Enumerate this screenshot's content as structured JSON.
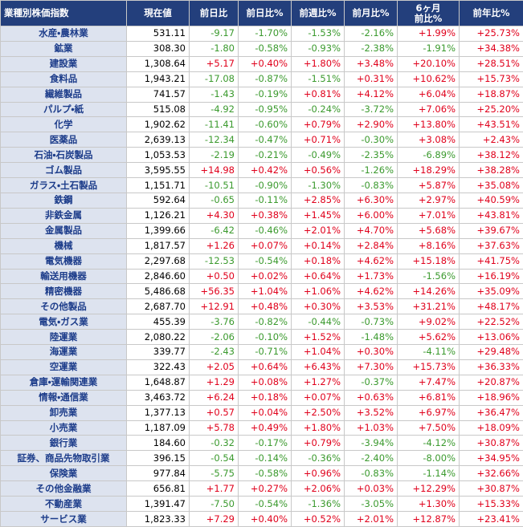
{
  "table": {
    "header": [
      "業種別株価指数",
      "現在値",
      "前日比",
      "前日比%",
      "前週比%",
      "前月比%",
      "6ヶ月\n前比%",
      "前年比%"
    ],
    "rows": [
      [
        "水産・農林業",
        "531.11",
        "-9.17",
        "-1.70%",
        "-1.53%",
        "-2.16%",
        "+1.99%",
        "+25.73%"
      ],
      [
        "鉱業",
        "308.30",
        "-1.80",
        "-0.58%",
        "-0.93%",
        "-2.38%",
        "-1.91%",
        "+34.38%"
      ],
      [
        "建設業",
        "1,308.64",
        "+5.17",
        "+0.40%",
        "+1.80%",
        "+3.48%",
        "+20.10%",
        "+28.51%"
      ],
      [
        "食料品",
        "1,943.21",
        "-17.08",
        "-0.87%",
        "-1.51%",
        "+0.31%",
        "+10.62%",
        "+15.73%"
      ],
      [
        "繊維製品",
        "741.57",
        "-1.43",
        "-0.19%",
        "+0.81%",
        "+4.12%",
        "+6.04%",
        "+18.87%"
      ],
      [
        "パルプ・紙",
        "515.08",
        "-4.92",
        "-0.95%",
        "-0.24%",
        "-3.72%",
        "+7.06%",
        "+25.20%"
      ],
      [
        "化学",
        "1,902.62",
        "-11.41",
        "-0.60%",
        "+0.79%",
        "+2.90%",
        "+13.80%",
        "+43.51%"
      ],
      [
        "医薬品",
        "2,639.13",
        "-12.34",
        "-0.47%",
        "+0.71%",
        "-0.30%",
        "+3.08%",
        "+2.43%"
      ],
      [
        "石油・石炭製品",
        "1,053.53",
        "-2.19",
        "-0.21%",
        "-0.49%",
        "-2.35%",
        "-6.89%",
        "+38.12%"
      ],
      [
        "ゴム製品",
        "3,595.55",
        "+14.98",
        "+0.42%",
        "+0.56%",
        "-1.26%",
        "+18.29%",
        "+38.28%"
      ],
      [
        "ガラス・土石製品",
        "1,151.71",
        "-10.51",
        "-0.90%",
        "-1.30%",
        "-0.83%",
        "+5.87%",
        "+35.08%"
      ],
      [
        "鉄鋼",
        "592.64",
        "-0.65",
        "-0.11%",
        "+2.85%",
        "+6.30%",
        "+2.97%",
        "+40.59%"
      ],
      [
        "非鉄金属",
        "1,126.21",
        "+4.30",
        "+0.38%",
        "+1.45%",
        "+6.00%",
        "+7.01%",
        "+43.81%"
      ],
      [
        "金属製品",
        "1,399.66",
        "-6.42",
        "-0.46%",
        "+2.01%",
        "+4.70%",
        "+5.68%",
        "+39.67%"
      ],
      [
        "機械",
        "1,817.57",
        "+1.26",
        "+0.07%",
        "+0.14%",
        "+2.84%",
        "+8.16%",
        "+37.63%"
      ],
      [
        "電気機器",
        "2,297.68",
        "-12.53",
        "-0.54%",
        "+0.18%",
        "+4.62%",
        "+15.18%",
        "+41.75%"
      ],
      [
        "輸送用機器",
        "2,846.60",
        "+0.50",
        "+0.02%",
        "+0.64%",
        "+1.73%",
        "-1.56%",
        "+16.19%"
      ],
      [
        "精密機器",
        "5,486.68",
        "+56.35",
        "+1.04%",
        "+1.06%",
        "+4.62%",
        "+14.26%",
        "+35.09%"
      ],
      [
        "その他製品",
        "2,687.70",
        "+12.91",
        "+0.48%",
        "+0.30%",
        "+3.53%",
        "+31.21%",
        "+48.17%"
      ],
      [
        "電気・ガス業",
        "455.39",
        "-3.76",
        "-0.82%",
        "-0.44%",
        "-0.73%",
        "+9.02%",
        "+22.52%"
      ],
      [
        "陸運業",
        "2,080.22",
        "-2.06",
        "-0.10%",
        "+1.52%",
        "-1.48%",
        "+5.62%",
        "+13.06%"
      ],
      [
        "海運業",
        "339.77",
        "-2.43",
        "-0.71%",
        "+1.04%",
        "+0.30%",
        "-4.11%",
        "+29.48%"
      ],
      [
        "空運業",
        "322.43",
        "+2.05",
        "+0.64%",
        "+6.43%",
        "+7.30%",
        "+15.73%",
        "+36.33%"
      ],
      [
        "倉庫・運輸関連業",
        "1,648.87",
        "+1.29",
        "+0.08%",
        "+1.27%",
        "-0.37%",
        "+7.47%",
        "+20.87%"
      ],
      [
        "情報・通信業",
        "3,463.72",
        "+6.24",
        "+0.18%",
        "+0.07%",
        "+0.63%",
        "+6.81%",
        "+18.96%"
      ],
      [
        "卸売業",
        "1,377.13",
        "+0.57",
        "+0.04%",
        "+2.50%",
        "+3.52%",
        "+6.97%",
        "+36.47%"
      ],
      [
        "小売業",
        "1,187.09",
        "+5.78",
        "+0.49%",
        "+1.80%",
        "+1.03%",
        "+7.50%",
        "+18.09%"
      ],
      [
        "銀行業",
        "184.60",
        "-0.32",
        "-0.17%",
        "+0.79%",
        "-3.94%",
        "-4.12%",
        "+30.87%"
      ],
      [
        "証券、商品先物取引業",
        "396.15",
        "-0.54",
        "-0.14%",
        "-0.36%",
        "-2.40%",
        "-8.00%",
        "+34.95%"
      ],
      [
        "保険業",
        "977.84",
        "-5.75",
        "-0.58%",
        "+0.96%",
        "-0.83%",
        "-1.14%",
        "+32.66%"
      ],
      [
        "その他金融業",
        "656.81",
        "+1.77",
        "+0.27%",
        "+2.06%",
        "+0.03%",
        "+12.29%",
        "+30.87%"
      ],
      [
        "不動産業",
        "1,391.47",
        "-7.50",
        "-0.54%",
        "-1.36%",
        "-3.05%",
        "+1.30%",
        "+15.33%"
      ],
      [
        "サービス業",
        "1,823.33",
        "+7.29",
        "+0.40%",
        "+0.52%",
        "+2.01%",
        "+12.87%",
        "+23.41%"
      ]
    ]
  }
}
